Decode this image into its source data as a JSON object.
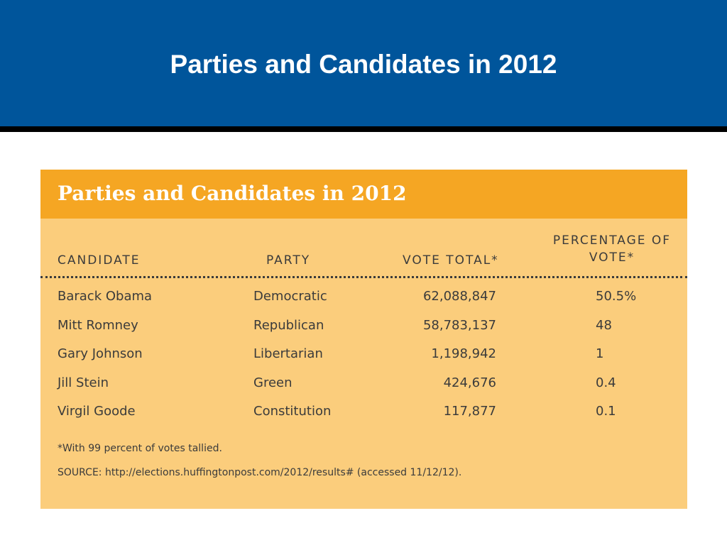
{
  "slide": {
    "title": "Parties and Candidates in 2012"
  },
  "table": {
    "title": "Parties and Candidates in 2012",
    "columns": {
      "candidate": "CANDIDATE",
      "party": "PARTY",
      "vote_total": "VOTE TOTAL*",
      "percentage": "PERCENTAGE OF VOTE*"
    },
    "rows": [
      {
        "candidate": "Barack Obama",
        "party": "Democratic",
        "votes": "62,088,847",
        "pct": "50.5%"
      },
      {
        "candidate": "Mitt Romney",
        "party": "Republican",
        "votes": "58,783,137",
        "pct": "48"
      },
      {
        "candidate": "Gary Johnson",
        "party": "Libertarian",
        "votes": "1,198,942",
        "pct": "1"
      },
      {
        "candidate": "Jill Stein",
        "party": "Green",
        "votes": "424,676",
        "pct": "0.4"
      },
      {
        "candidate": "Virgil Goode",
        "party": "Constitution",
        "votes": "117,877",
        "pct": "0.1"
      }
    ],
    "footnote": "*With 99 percent of votes tallied.",
    "source": "SOURCE: http://elections.huffingtonpost.com/2012/results# (accessed 11/12/12)."
  },
  "colors": {
    "banner": "#00559b",
    "banner_rule": "#000000",
    "card_header": "#f5a623",
    "card_body": "#fbcd7c",
    "text": "#3b3b3b"
  }
}
